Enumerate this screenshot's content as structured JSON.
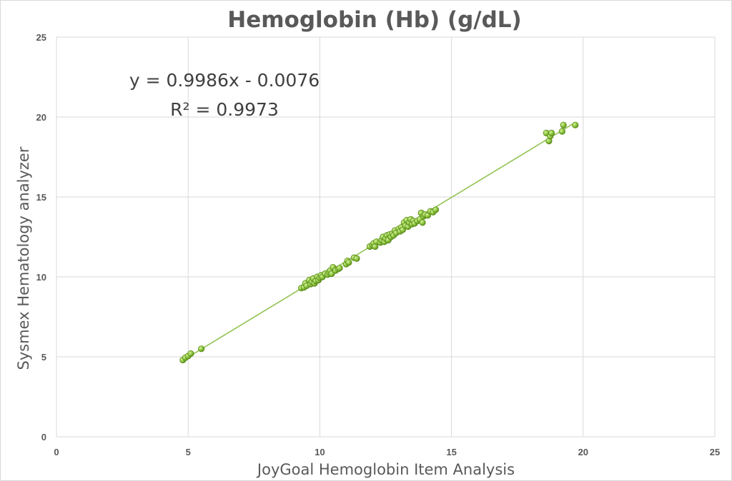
{
  "chart_data": {
    "type": "scatter",
    "title": "Hemoglobin (Hb) (g/dL)",
    "xlabel": "JoyGoal Hemoglobin Item Analysis",
    "ylabel": "Sysmex Hematology analyzer",
    "xlim": [
      0,
      25
    ],
    "ylim": [
      0,
      25
    ],
    "xticks": [
      "0",
      "5",
      "10",
      "15",
      "20",
      "25"
    ],
    "yticks": [
      "0",
      "5",
      "10",
      "15",
      "20",
      "25"
    ],
    "grid": true,
    "trendline": {
      "equation": "y = 0.9986x - 0.0076",
      "r_squared": "R² = 0.9973",
      "slope": 0.9986,
      "intercept": -0.0076,
      "x_range": [
        4.8,
        19.7
      ]
    },
    "colors": {
      "marker": "#8cc63f",
      "marker_edge": "#5f8f1f",
      "line": "#92c353",
      "grid": "#d9d9d9",
      "text": "#595959"
    },
    "series": [
      {
        "points": [
          [
            4.8,
            4.8
          ],
          [
            4.9,
            4.95
          ],
          [
            5.0,
            5.05
          ],
          [
            5.1,
            5.2
          ],
          [
            5.5,
            5.5
          ],
          [
            9.3,
            9.3
          ],
          [
            9.4,
            9.35
          ],
          [
            9.45,
            9.6
          ],
          [
            9.5,
            9.45
          ],
          [
            9.6,
            9.8
          ],
          [
            9.65,
            9.55
          ],
          [
            9.7,
            9.7
          ],
          [
            9.75,
            9.9
          ],
          [
            9.8,
            9.6
          ],
          [
            9.85,
            9.75
          ],
          [
            9.9,
            10.0
          ],
          [
            9.95,
            9.8
          ],
          [
            10.0,
            9.95
          ],
          [
            10.05,
            10.1
          ],
          [
            10.1,
            10.0
          ],
          [
            10.2,
            10.2
          ],
          [
            10.3,
            10.15
          ],
          [
            10.35,
            10.3
          ],
          [
            10.4,
            10.4
          ],
          [
            10.45,
            10.2
          ],
          [
            10.5,
            10.6
          ],
          [
            10.6,
            10.4
          ],
          [
            10.7,
            10.5
          ],
          [
            10.75,
            10.55
          ],
          [
            11.0,
            10.8
          ],
          [
            11.05,
            11.0
          ],
          [
            11.1,
            10.9
          ],
          [
            11.3,
            11.2
          ],
          [
            11.4,
            11.15
          ],
          [
            11.9,
            11.9
          ],
          [
            12.0,
            12.0
          ],
          [
            12.05,
            12.1
          ],
          [
            12.1,
            11.9
          ],
          [
            12.15,
            12.2
          ],
          [
            12.3,
            12.15
          ],
          [
            12.35,
            12.3
          ],
          [
            12.4,
            12.5
          ],
          [
            12.45,
            12.2
          ],
          [
            12.5,
            12.4
          ],
          [
            12.55,
            12.6
          ],
          [
            12.6,
            12.3
          ],
          [
            12.65,
            12.65
          ],
          [
            12.7,
            12.5
          ],
          [
            12.75,
            12.7
          ],
          [
            12.8,
            12.6
          ],
          [
            12.85,
            12.9
          ],
          [
            12.9,
            12.75
          ],
          [
            13.0,
            13.0
          ],
          [
            13.05,
            12.85
          ],
          [
            13.1,
            13.1
          ],
          [
            13.15,
            12.95
          ],
          [
            13.2,
            13.4
          ],
          [
            13.25,
            13.2
          ],
          [
            13.3,
            13.55
          ],
          [
            13.35,
            13.15
          ],
          [
            13.4,
            13.4
          ],
          [
            13.45,
            13.6
          ],
          [
            13.5,
            13.3
          ],
          [
            13.55,
            13.5
          ],
          [
            13.6,
            13.35
          ],
          [
            13.7,
            13.5
          ],
          [
            13.8,
            13.6
          ],
          [
            13.85,
            14.0
          ],
          [
            13.9,
            13.4
          ],
          [
            13.95,
            13.8
          ],
          [
            14.0,
            13.9
          ],
          [
            14.1,
            13.85
          ],
          [
            14.2,
            14.1
          ],
          [
            14.3,
            14.05
          ],
          [
            14.4,
            14.2
          ],
          [
            18.6,
            19.0
          ],
          [
            18.7,
            18.5
          ],
          [
            18.75,
            18.8
          ],
          [
            18.8,
            19.0
          ],
          [
            19.2,
            19.1
          ],
          [
            19.25,
            19.5
          ],
          [
            19.7,
            19.5
          ]
        ]
      }
    ]
  }
}
